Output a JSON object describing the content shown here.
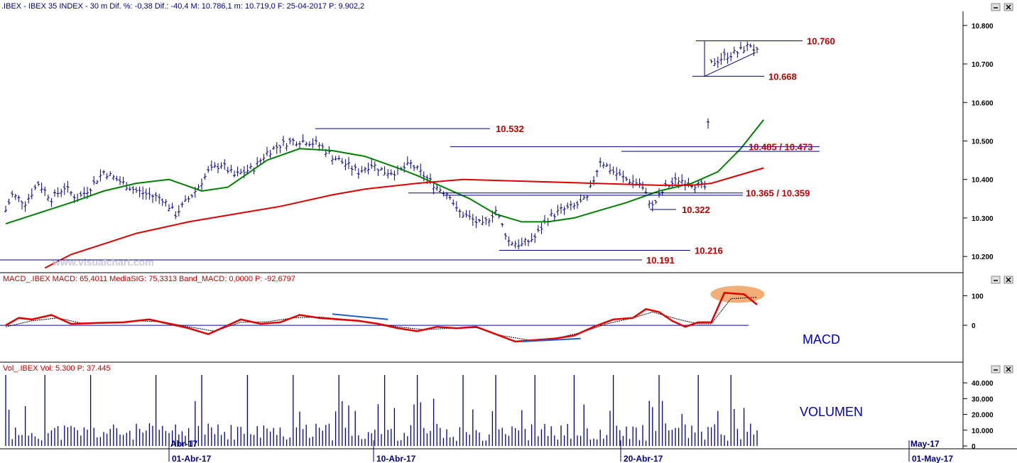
{
  "header": {
    "price": ".IBEX - IBEX 35 INDEX -  30 m  Dif. %: -0,38  Dif.: -40,4  M: 10.786,1  m: 10.719,0  F: 25-04-2017  P: 9.902,2",
    "macd": "MACD_.IBEX MACD: 65,4011  MediaSIG: 75,3313  Band_MACD: 0,0000  P: -92,6797",
    "vol": "Vol_.IBEX Vol: 5.300  P: 37.445"
  },
  "watermark": "www.visualchart.com",
  "panel_labels": {
    "macd": "MACD",
    "volume": "VOLUMEN"
  },
  "x_labels": [
    "01-Abr-17",
    "10-Abr-17",
    "20-Abr-17",
    "01-May-17"
  ],
  "x_top_labels": [
    "Abr-17",
    "May-17"
  ],
  "colors": {
    "sma_short": "#008000",
    "sma_long": "#e00000",
    "macd": "#e00000",
    "signal": "#000000",
    "levels": "#000080",
    "level_text": "#c00000",
    "bars": "#000080",
    "highlight": "#f0a060"
  },
  "chart_data": [
    {
      "type": "ohlc",
      "panel": "price",
      "ylim": [
        10180,
        10820
      ],
      "yticks": [
        "10.800",
        "10.700",
        "10.600",
        "10.500",
        "10.400",
        "10.300",
        "10.200"
      ],
      "levels": [
        {
          "value": 10760,
          "label": "10.760"
        },
        {
          "value": 10668,
          "label": "10.668"
        },
        {
          "value": 10532,
          "label": "10.532"
        },
        {
          "value": 10485,
          "label": "10.485 / 10.473"
        },
        {
          "value": 10473,
          "label": ""
        },
        {
          "value": 10365,
          "label": "10.365 / 10.359"
        },
        {
          "value": 10359,
          "label": ""
        },
        {
          "value": 10322,
          "label": "10.322"
        },
        {
          "value": 10216,
          "label": "10.216"
        },
        {
          "value": 10191,
          "label": "10.191"
        }
      ],
      "close_anchors": [
        [
          0,
          10320
        ],
        [
          2,
          10360
        ],
        [
          6,
          10340
        ],
        [
          10,
          10390
        ],
        [
          14,
          10350
        ],
        [
          18,
          10380
        ],
        [
          22,
          10350
        ],
        [
          26,
          10380
        ],
        [
          30,
          10420
        ],
        [
          36,
          10390
        ],
        [
          40,
          10370
        ],
        [
          48,
          10350
        ],
        [
          52,
          10310
        ],
        [
          56,
          10350
        ],
        [
          58,
          10370
        ],
        [
          62,
          10420
        ],
        [
          66,
          10440
        ],
        [
          70,
          10410
        ],
        [
          76,
          10430
        ],
        [
          80,
          10470
        ],
        [
          84,
          10490
        ],
        [
          88,
          10500
        ],
        [
          92,
          10500
        ],
        [
          96,
          10490
        ],
        [
          100,
          10460
        ],
        [
          104,
          10440
        ],
        [
          108,
          10420
        ],
        [
          112,
          10440
        ],
        [
          116,
          10420
        ],
        [
          120,
          10420
        ],
        [
          124,
          10440
        ],
        [
          128,
          10410
        ],
        [
          132,
          10380
        ],
        [
          136,
          10360
        ],
        [
          138,
          10320
        ],
        [
          142,
          10300
        ],
        [
          146,
          10280
        ],
        [
          150,
          10320
        ],
        [
          154,
          10240
        ],
        [
          158,
          10230
        ],
        [
          162,
          10250
        ],
        [
          166,
          10300
        ],
        [
          170,
          10320
        ],
        [
          174,
          10330
        ],
        [
          178,
          10350
        ],
        [
          182,
          10450
        ],
        [
          186,
          10420
        ],
        [
          190,
          10400
        ],
        [
          194,
          10390
        ],
        [
          198,
          10330
        ],
        [
          202,
          10380
        ],
        [
          206,
          10400
        ],
        [
          210,
          10390
        ],
        [
          214,
          10380
        ],
        [
          216,
          10700
        ],
        [
          220,
          10720
        ],
        [
          224,
          10730
        ],
        [
          228,
          10750
        ],
        [
          230,
          10730
        ]
      ],
      "sma_short": [
        [
          0,
          10285
        ],
        [
          20,
          10340
        ],
        [
          30,
          10370
        ],
        [
          40,
          10390
        ],
        [
          50,
          10400
        ],
        [
          60,
          10370
        ],
        [
          68,
          10380
        ],
        [
          80,
          10450
        ],
        [
          90,
          10480
        ],
        [
          100,
          10475
        ],
        [
          110,
          10460
        ],
        [
          120,
          10430
        ],
        [
          126,
          10410
        ],
        [
          134,
          10380
        ],
        [
          142,
          10350
        ],
        [
          150,
          10310
        ],
        [
          158,
          10290
        ],
        [
          166,
          10290
        ],
        [
          174,
          10300
        ],
        [
          182,
          10320
        ],
        [
          190,
          10340
        ],
        [
          200,
          10370
        ],
        [
          210,
          10390
        ],
        [
          218,
          10420
        ],
        [
          225,
          10480
        ],
        [
          232,
          10555
        ]
      ],
      "sma_long": [
        [
          12,
          10170
        ],
        [
          20,
          10205
        ],
        [
          40,
          10260
        ],
        [
          56,
          10290
        ],
        [
          70,
          10310
        ],
        [
          84,
          10330
        ],
        [
          100,
          10360
        ],
        [
          110,
          10375
        ],
        [
          126,
          10390
        ],
        [
          140,
          10400
        ],
        [
          160,
          10395
        ],
        [
          180,
          10390
        ],
        [
          200,
          10385
        ],
        [
          210,
          10385
        ],
        [
          216,
          10390
        ],
        [
          222,
          10405
        ],
        [
          232,
          10430
        ]
      ]
    },
    {
      "type": "line",
      "panel": "macd",
      "ylim": [
        -120,
        130
      ],
      "yticks": [
        "100",
        "0"
      ],
      "series": [
        {
          "name": "MACD",
          "points": [
            [
              0,
              0
            ],
            [
              4,
              25
            ],
            [
              8,
              20
            ],
            [
              14,
              35
            ],
            [
              20,
              5
            ],
            [
              28,
              8
            ],
            [
              36,
              10
            ],
            [
              44,
              20
            ],
            [
              50,
              5
            ],
            [
              56,
              -10
            ],
            [
              62,
              -30
            ],
            [
              66,
              -10
            ],
            [
              72,
              20
            ],
            [
              78,
              5
            ],
            [
              84,
              10
            ],
            [
              90,
              35
            ],
            [
              96,
              25
            ],
            [
              102,
              20
            ],
            [
              108,
              15
            ],
            [
              114,
              5
            ],
            [
              120,
              -10
            ],
            [
              126,
              -20
            ],
            [
              132,
              -5
            ],
            [
              138,
              -10
            ],
            [
              144,
              -5
            ],
            [
              150,
              -30
            ],
            [
              156,
              -55
            ],
            [
              162,
              -50
            ],
            [
              168,
              -45
            ],
            [
              174,
              -35
            ],
            [
              180,
              -5
            ],
            [
              186,
              20
            ],
            [
              192,
              25
            ],
            [
              196,
              55
            ],
            [
              200,
              45
            ],
            [
              204,
              15
            ],
            [
              208,
              -5
            ],
            [
              212,
              10
            ],
            [
              216,
              10
            ],
            [
              220,
              110
            ],
            [
              226,
              105
            ],
            [
              230,
              70
            ]
          ]
        },
        {
          "name": "MediaSIG",
          "points": [
            [
              0,
              -5
            ],
            [
              8,
              15
            ],
            [
              16,
              25
            ],
            [
              24,
              5
            ],
            [
              32,
              8
            ],
            [
              40,
              15
            ],
            [
              48,
              12
            ],
            [
              56,
              -5
            ],
            [
              64,
              -20
            ],
            [
              72,
              10
            ],
            [
              80,
              12
            ],
            [
              88,
              25
            ],
            [
              96,
              28
            ],
            [
              104,
              20
            ],
            [
              112,
              10
            ],
            [
              120,
              -5
            ],
            [
              128,
              -15
            ],
            [
              136,
              -10
            ],
            [
              144,
              -8
            ],
            [
              152,
              -35
            ],
            [
              160,
              -50
            ],
            [
              168,
              -45
            ],
            [
              176,
              -25
            ],
            [
              184,
              5
            ],
            [
              192,
              25
            ],
            [
              198,
              45
            ],
            [
              206,
              20
            ],
            [
              212,
              5
            ],
            [
              216,
              5
            ],
            [
              222,
              90
            ],
            [
              230,
              95
            ]
          ]
        }
      ]
    },
    {
      "type": "bar",
      "panel": "volume",
      "ylim": [
        0,
        45000
      ],
      "yticks": [
        "40.000",
        "30.000",
        "20.000",
        "10.000",
        "0"
      ],
      "spikes": [
        {
          "bar": 0,
          "value": 45000
        },
        {
          "bar": 12,
          "value": 45000
        },
        {
          "bar": 26,
          "value": 45000
        },
        {
          "bar": 46,
          "value": 45000
        },
        {
          "bar": 60,
          "value": 45000
        },
        {
          "bar": 74,
          "value": 45000
        },
        {
          "bar": 88,
          "value": 45000
        },
        {
          "bar": 102,
          "value": 45000
        },
        {
          "bar": 116,
          "value": 45000
        },
        {
          "bar": 126,
          "value": 45000
        },
        {
          "bar": 140,
          "value": 45000
        },
        {
          "bar": 150,
          "value": 45000
        },
        {
          "bar": 162,
          "value": 45000
        },
        {
          "bar": 174,
          "value": 45000
        },
        {
          "bar": 186,
          "value": 45000
        },
        {
          "bar": 200,
          "value": 45000
        },
        {
          "bar": 212,
          "value": 45000
        },
        {
          "bar": 222,
          "value": 45000
        }
      ],
      "base_value": 8000
    }
  ]
}
